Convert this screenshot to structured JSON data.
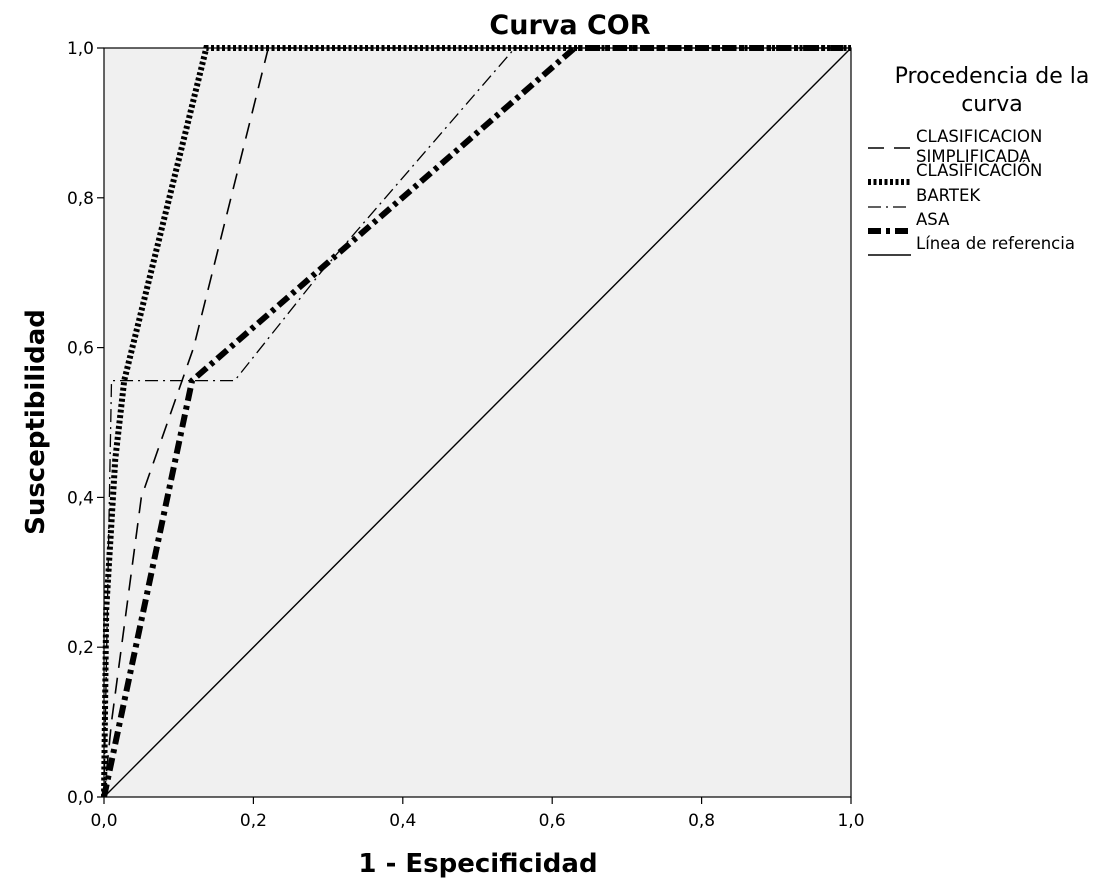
{
  "chart_data": {
    "type": "line",
    "title": "Curva COR",
    "xlabel": "1 - Especificidad",
    "ylabel": "Susceptibilidad",
    "xlim": [
      0,
      1
    ],
    "ylim": [
      0,
      1
    ],
    "x_ticks": [
      "0,0",
      "0,2",
      "0,4",
      "0,6",
      "0,8",
      "1,0"
    ],
    "y_ticks": [
      "0,0",
      "0,2",
      "0,4",
      "0,6",
      "0,8",
      "1,0"
    ],
    "grid": false,
    "background_color": "#f0f0f0",
    "legend_position": "right",
    "legend": {
      "title_lines": [
        "Procedencia de la",
        "curva"
      ]
    },
    "series": [
      {
        "name_lines": [
          "CLASIFICACION",
          "SIMPLIFICADA"
        ],
        "style": "dashed",
        "points": [
          [
            0,
            0
          ],
          [
            0.01,
            0.1
          ],
          [
            0.05,
            0.4
          ],
          [
            0.12,
            0.6
          ],
          [
            0.22,
            1.0
          ],
          [
            1.0,
            1.0
          ]
        ]
      },
      {
        "name_lines": [
          "CLASIFICACIÓN"
        ],
        "style": "dotted-thick",
        "points": [
          [
            0,
            0
          ],
          [
            0.003,
            0.25
          ],
          [
            0.015,
            0.45
          ],
          [
            0.027,
            0.556
          ],
          [
            0.137,
            1.0
          ],
          [
            1.0,
            1.0
          ]
        ]
      },
      {
        "name_lines": [
          "BARTEK"
        ],
        "style": "dashdot-thin",
        "points": [
          [
            0,
            0
          ],
          [
            0.01,
            0.556
          ],
          [
            0.175,
            0.556
          ],
          [
            0.29,
            0.7
          ],
          [
            0.55,
            1.0
          ],
          [
            1.0,
            1.0
          ]
        ]
      },
      {
        "name_lines": [
          "ASA"
        ],
        "style": "dashdot-thick",
        "points": [
          [
            0,
            0
          ],
          [
            0.118,
            0.556
          ],
          [
            0.63,
            1.0
          ],
          [
            1.0,
            1.0
          ]
        ]
      },
      {
        "name_lines": [
          "Línea de referencia"
        ],
        "style": "solid",
        "points": [
          [
            0,
            0
          ],
          [
            1.0,
            1.0
          ]
        ]
      }
    ]
  }
}
